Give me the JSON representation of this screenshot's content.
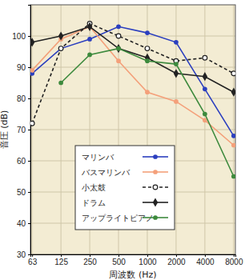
{
  "chart_data": {
    "type": "line",
    "x_label": "周波数 (Hz)",
    "y_label": "音圧 (dB)",
    "categories": [
      "63",
      "125",
      "250",
      "500",
      "1000",
      "2000",
      "4000",
      "8000"
    ],
    "series": [
      {
        "name": "マリンバ",
        "color": "#2b3fbf",
        "marker": "circle",
        "line_style": "solid",
        "values": [
          88,
          96,
          99,
          103,
          101,
          98,
          83,
          68
        ]
      },
      {
        "name": "バスマリンバ",
        "color": "#f4a07a",
        "marker": "circle",
        "line_style": "solid",
        "values": [
          89,
          99,
          103,
          92,
          82,
          79,
          73,
          65
        ]
      },
      {
        "name": "小太鼓",
        "color": "#222222",
        "marker": "circle-open",
        "line_style": "dashed",
        "values": [
          72,
          96,
          104,
          100,
          96,
          92,
          93,
          88
        ]
      },
      {
        "name": "ドラム",
        "color": "#222222",
        "marker": "diamond",
        "line_style": "solid",
        "values": [
          98,
          100,
          103,
          96,
          93,
          88,
          87,
          82
        ]
      },
      {
        "name": "アップライトピアノ",
        "color": "#3d8a3d",
        "marker": "circle",
        "line_style": "solid",
        "values": [
          null,
          85,
          94,
          96,
          92,
          91,
          75,
          55
        ]
      }
    ],
    "ylim": [
      30,
      110
    ],
    "yticks": [
      30,
      40,
      50,
      60,
      70,
      80,
      90,
      100
    ],
    "grid": true,
    "legend": "center"
  }
}
